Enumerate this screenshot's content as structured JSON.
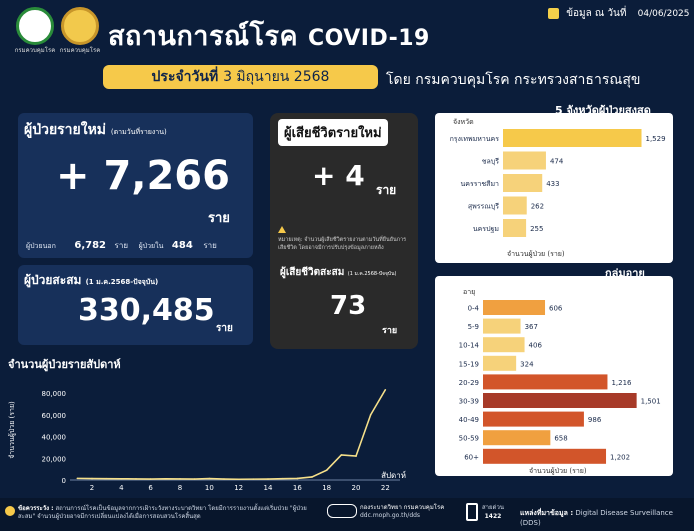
{
  "header": {
    "title_th": "สถานการณ์โรค",
    "title_en": "COVID-19",
    "logo1_caption": "กรมควบคุมโรค",
    "logo2_caption": "กรมควบคุมโรค",
    "date_label": "ข้อมูล ณ วันที่",
    "date_value": "04/06/2025",
    "day_label": "ประจำวันที่",
    "day_value": "3 มิถุนายน 2568",
    "source": "โดย กรมควบคุมโรค กระทรวงสาธารณสุข"
  },
  "new_cases": {
    "label": "ผู้ป่วยรายใหม่",
    "sublabel": "(ตามวันที่รายงาน)",
    "value": "+ 7,266",
    "unit": "ราย",
    "outside_label": "ผู้ป่วยนอก",
    "outside_value": "6,782",
    "outside_unit": "ราย",
    "inside_label": "ผู้ป่วยใน",
    "inside_value": "484",
    "inside_unit": "ราย"
  },
  "cumulative": {
    "label": "ผู้ป่วยสะสม",
    "sublabel": "(1 ม.ค.2568-ปัจจุบัน)",
    "value": "330,485",
    "unit": "ราย"
  },
  "deaths": {
    "label": "ผู้เสียชีวิตรายใหม่",
    "value": "+ 4",
    "unit": "ราย",
    "note": "หมายเหตุ: จำนวนผู้เสียชีวิตรายงานตามวันที่ยืนยันการเสียชีวิต โดยอาจมีการปรับปรุงข้อมูลภายหลัง",
    "cum_label": "ผู้เสียชีวิตสะสม",
    "cum_sublabel": "(1 ม.ค.2568-ปัจจุบัน)",
    "cum_value": "73",
    "cum_unit": "ราย"
  },
  "weekly": {
    "title": "จำนวนผู้ป่วยรายสัปดาห์",
    "ylabel": "จำนวนผู้ป่วย (ราย)",
    "xlabel": "สัปดาห์"
  },
  "top5": {
    "title": "5 จังหวัดผู้ป่วยสูงสุด",
    "axis_label": "จังหวัด",
    "footer_label": "จำนวนผู้ป่วย (ราย)"
  },
  "age": {
    "title": "กลุ่มอายุ",
    "axis_label": "อายุ",
    "footer_label": "จำนวนผู้ป่วย (ราย)"
  },
  "footer": {
    "note_label": "ข้อควรระวัง :",
    "note_text": "สถานการณ์โรคเป็นข้อมูลจากการเฝ้าระวังทางระบาดวิทยา โดยมีการรายงานตั้งแต่เริ่มป่วย \"ผู้ป่วยสะสม\" จำนวนผู้ป่วยอาจมีการเปลี่ยนแปลงได้เมื่อการสอบสวนโรคสิ้นสุด",
    "ddc_text": "กองระบาดวิทยา กรมควบคุมโรค",
    "ddc_url": "ddc.moph.go.th/dds",
    "hotline_label": "สายด่วน",
    "hotline_number": "1422",
    "source_label": "แหล่งที่มาข้อมูล :",
    "source_text": "Digital Disease Surveillance (DDS)"
  },
  "colors": {
    "background": "#0b1d3a",
    "panel": "#17305a",
    "yellow": "#f6c94a",
    "bar_light": "#f6d27a",
    "bar_orange": "#f0a040",
    "bar_dark": "#d2552a",
    "bar_darkest": "#a73a28"
  },
  "chart_data": [
    {
      "type": "bar",
      "title": "5 จังหวัดผู้ป่วยสูงสุด",
      "ylabel": "จังหวัด",
      "xlabel": "จำนวนผู้ป่วย (ราย)",
      "categories": [
        "กรุงเทพมหานคร",
        "ชลบุรี",
        "นครราชสีมา",
        "สุพรรณบุรี",
        "นครปฐม"
      ],
      "values": [
        1529,
        474,
        433,
        262,
        255
      ],
      "labels": [
        "1,529",
        "474",
        "433",
        "262",
        "255"
      ],
      "orientation": "horizontal",
      "xlim": [
        0,
        1700
      ]
    },
    {
      "type": "bar",
      "title": "กลุ่มอายุ",
      "ylabel": "อายุ",
      "xlabel": "จำนวนผู้ป่วย (ราย)",
      "categories": [
        "0-4",
        "5-9",
        "10-14",
        "15-19",
        "20-29",
        "30-39",
        "40-49",
        "50-59",
        "60+"
      ],
      "values": [
        606,
        367,
        406,
        324,
        1216,
        1501,
        986,
        658,
        1202
      ],
      "labels": [
        "606",
        "367",
        "406",
        "324",
        "1,216",
        "1,501",
        "986",
        "658",
        "1,202"
      ],
      "orientation": "horizontal",
      "xlim": [
        0,
        1700
      ]
    },
    {
      "type": "line",
      "title": "จำนวนผู้ป่วยรายสัปดาห์",
      "xlabel": "สัปดาห์",
      "ylabel": "จำนวนผู้ป่วย (ราย)",
      "x": [
        1,
        2,
        3,
        4,
        5,
        6,
        7,
        8,
        9,
        10,
        11,
        12,
        13,
        14,
        15,
        16,
        17,
        18,
        19,
        20,
        21,
        22
      ],
      "y": [
        1500,
        1300,
        1200,
        1100,
        1000,
        900,
        1100,
        1000,
        900,
        1300,
        900,
        700,
        800,
        900,
        1200,
        1400,
        2800,
        9000,
        23000,
        22000,
        60000,
        83000
      ],
      "x_ticks": [
        2,
        4,
        6,
        8,
        10,
        12,
        14,
        16,
        18,
        20,
        22
      ],
      "y_ticks": [
        0,
        20000,
        40000,
        60000,
        80000
      ],
      "y_tick_labels": [
        "0",
        "20,000",
        "40,000",
        "60,000",
        "80,000"
      ],
      "ylim": [
        0,
        92000
      ],
      "xlim": [
        0.5,
        23
      ],
      "grid": false
    }
  ]
}
